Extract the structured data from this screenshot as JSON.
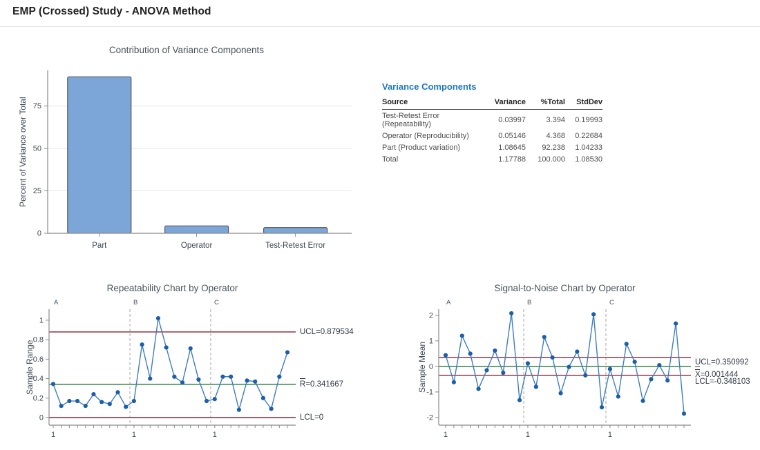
{
  "page": {
    "title": "EMP (Crossed) Study - ANOVA Method"
  },
  "colors": {
    "heading_blue": "#1c78c1",
    "bar_fill": "#7ca6d8",
    "bar_border": "#4d4d4d",
    "line_blue": "#3e7cc0",
    "marker_blue": "#1c5ea9",
    "limit_red": "#8b2432",
    "center_green": "#1f7a33",
    "separator_gray": "#a6a6a6",
    "axis_gray": "#8a8a8a",
    "grid_gray": "#e6e6e6"
  },
  "variance_table": {
    "title": "Variance Components",
    "columns": [
      "Source",
      "Variance",
      "%Total",
      "StdDev"
    ],
    "rows": [
      [
        "Test-Retest Error (Repeatability)",
        "0.03997",
        "3.394",
        "0.19993"
      ],
      [
        "Operator (Reproducibility)",
        "0.05146",
        "4.368",
        "0.22684"
      ],
      [
        "Part (Product variation)",
        "1.08645",
        "92.238",
        "1.04233"
      ],
      [
        "Total",
        "1.17788",
        "100.000",
        "1.08530"
      ]
    ]
  },
  "chart_data": [
    {
      "type": "bar",
      "title": "Contribution of Variance Components",
      "ylabel": "Percent of Variance over Total",
      "xlabel": "",
      "categories": [
        "Part",
        "Operator",
        "Test-Retest Error"
      ],
      "values": [
        92.238,
        4.368,
        3.394
      ],
      "yticks": [
        0,
        25,
        50,
        75
      ],
      "ylim": [
        0,
        96
      ],
      "grid": "horizontal",
      "legend": "none"
    },
    {
      "type": "line",
      "title": "Repeatability Chart by Operator",
      "ylabel": "Sample Range",
      "xlabel": "",
      "groups": [
        "A",
        "B",
        "C"
      ],
      "group_x_labels": [
        "1",
        "1",
        "1"
      ],
      "values": [
        0.345,
        0.12,
        0.17,
        0.17,
        0.12,
        0.24,
        0.16,
        0.14,
        0.26,
        0.11,
        0.17,
        0.75,
        0.4,
        1.02,
        0.72,
        0.42,
        0.36,
        0.71,
        0.39,
        0.17,
        0.19,
        0.42,
        0.42,
        0.08,
        0.38,
        0.37,
        0.2,
        0.09,
        0.42,
        0.67
      ],
      "yticks": [
        0,
        0.2,
        0.4,
        0.6,
        0.8,
        1
      ],
      "ylim": [
        -0.078,
        1.113
      ],
      "grid": "off",
      "limits": {
        "ucl": {
          "value": 0.879534,
          "label": "UCL=0.879534"
        },
        "center": {
          "value": 0.341667,
          "symbol": "R",
          "bar": "single",
          "label": "=0.341667"
        },
        "lcl": {
          "value": 0,
          "label": "LCL=0"
        }
      }
    },
    {
      "type": "line",
      "title": "Signal-to-Noise Chart by Operator",
      "ylabel": "Sample Mean",
      "xlabel": "",
      "groups": [
        "A",
        "B",
        "C"
      ],
      "group_x_labels": [
        "1",
        "1",
        "1"
      ],
      "values": [
        0.44,
        -0.62,
        1.2,
        0.5,
        -0.88,
        -0.15,
        0.62,
        -0.25,
        2.08,
        -1.32,
        0.12,
        -0.8,
        1.15,
        0.35,
        -1.05,
        -0.02,
        0.58,
        -0.35,
        2.04,
        -1.6,
        -0.1,
        -1.18,
        0.88,
        0.18,
        -1.35,
        -0.5,
        0.05,
        -0.55,
        1.68,
        -1.85
      ],
      "yticks": [
        -2,
        -1,
        0,
        1,
        2
      ],
      "ylim": [
        -2.3,
        2.24
      ],
      "grid": "off",
      "limits": {
        "ucl": {
          "value": 0.350992,
          "label": "UCL=0.350992"
        },
        "center": {
          "value": 0.001444,
          "symbol": "X",
          "bar": "double",
          "label": "=0.001444"
        },
        "lcl": {
          "value": -0.348103,
          "label": "LCL=-0.348103"
        }
      }
    }
  ]
}
